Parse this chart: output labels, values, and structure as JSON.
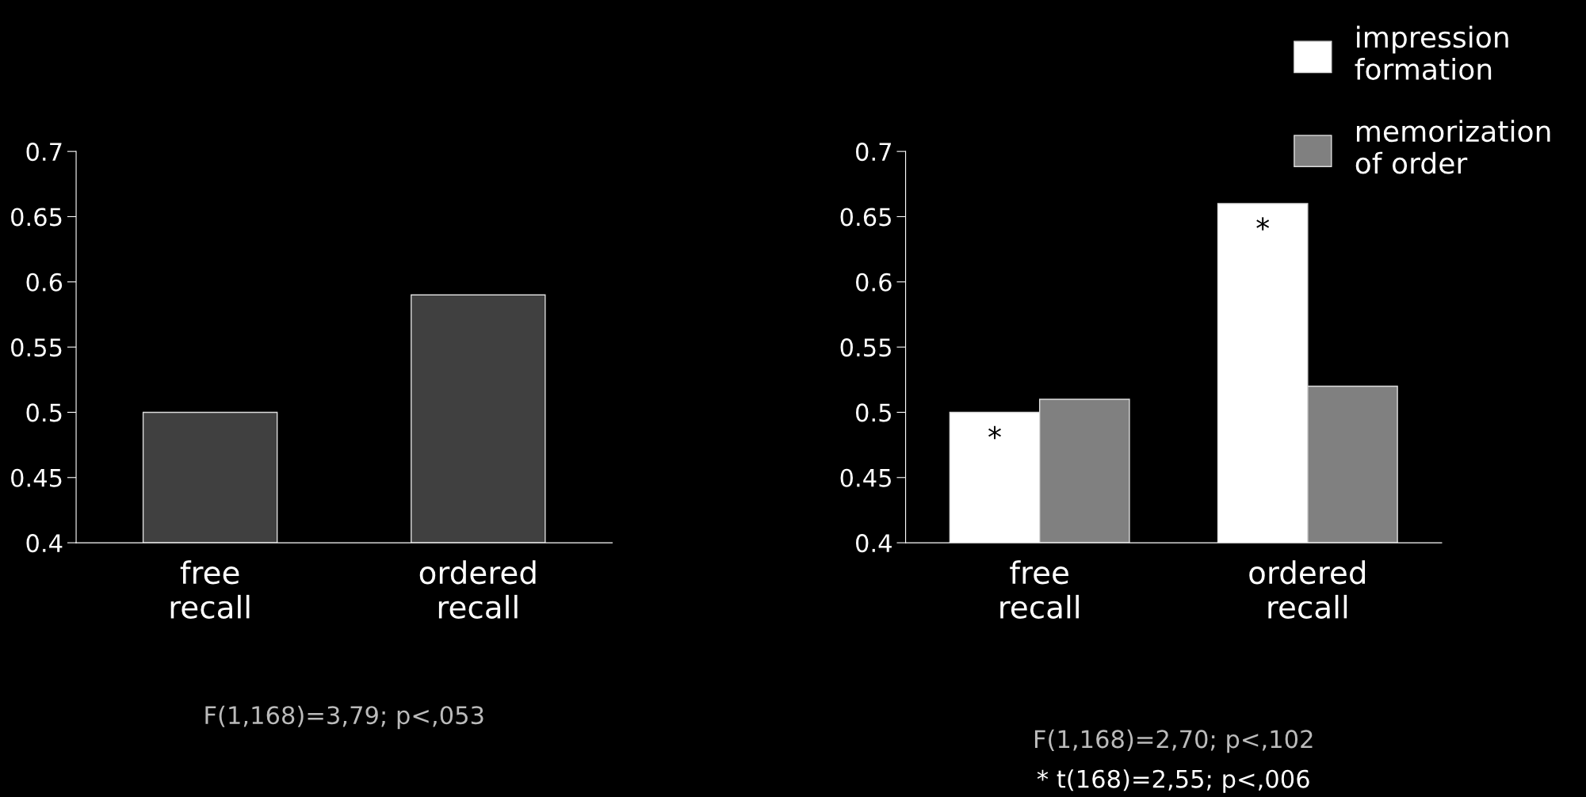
{
  "chart_data": [
    {
      "type": "bar",
      "categories": [
        "free\nrecall",
        "ordered\nrecall"
      ],
      "series": [
        {
          "color": "#404040",
          "values": [
            0.5,
            0.59
          ]
        }
      ],
      "ylim": [
        0.4,
        0.7
      ],
      "yticks": [
        0.4,
        0.45,
        0.5,
        0.55,
        0.6,
        0.65,
        0.7
      ],
      "grid": false,
      "legend": false,
      "annotations": [
        "F(1,168)=3,79; p<,053"
      ]
    },
    {
      "type": "bar",
      "categories": [
        "free\nrecall",
        "ordered\nrecall"
      ],
      "series": [
        {
          "name": "impression\nformation",
          "color": "#ffffff",
          "values": [
            0.5,
            0.66
          ]
        },
        {
          "name": "memorization\nof order",
          "color": "#808080",
          "values": [
            0.51,
            0.52
          ]
        }
      ],
      "ylim": [
        0.4,
        0.7
      ],
      "yticks": [
        0.4,
        0.45,
        0.5,
        0.55,
        0.6,
        0.65,
        0.7
      ],
      "grid": false,
      "legend": "top right",
      "annotations": [
        {
          "text": "*",
          "x": "free\nrecall",
          "y": 0.5
        },
        {
          "text": "*",
          "x": "ordered\nrecall",
          "y": 0.66
        },
        "F(1,168)=2,70; p<,102",
        "* t(168)=2,55; p<,006"
      ]
    }
  ]
}
